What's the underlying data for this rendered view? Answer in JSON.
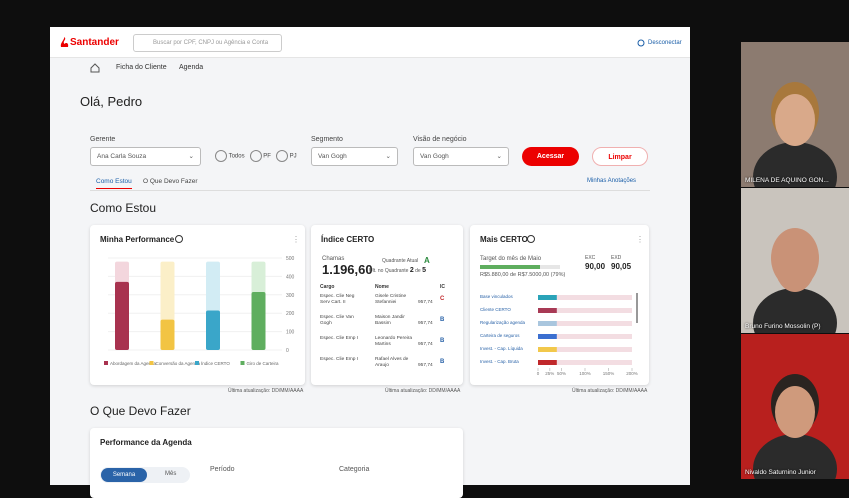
{
  "header": {
    "logo": "Santander",
    "search_placeholder": "Buscar por CPF, CNPJ ou Agência e Conta",
    "logout": "Desconectar"
  },
  "nav": [
    "Ficha do Cliente",
    "Agenda"
  ],
  "greeting": "Olá, Pedro",
  "filters": {
    "manager_label": "Gerente",
    "manager_value": "Ana Carla Souza",
    "radios": [
      "Todos",
      "PF",
      "PJ"
    ],
    "segment_label": "Segmento",
    "segment_value": "Van Gogh",
    "business_label": "Visão de negócio",
    "business_value": "Van Gogh",
    "submit": "Acessar",
    "clear": "Limpar"
  },
  "tabs": [
    "Como Estou",
    "O Que Devo Fazer"
  ],
  "notes_link": "Minhas Anotações",
  "section1_title": "Como Estou",
  "performance": {
    "title": "Minha Performance",
    "categories": [
      "Abordagem da Agenda",
      "Conversão da Agenda",
      "Índice CERTO",
      "Giro de Carteira"
    ],
    "colors": [
      "#a8324f",
      "#f2c443",
      "#3aa6c9",
      "#5fae5f"
    ],
    "track_colors": [
      "#f3d6dd",
      "#fbefc8",
      "#d2ecf4",
      "#d8efd8"
    ],
    "values": [
      370,
      165,
      215,
      315
    ],
    "track_values": [
      480,
      480,
      480,
      480
    ],
    "ylim": [
      0,
      500
    ],
    "yticks": [
      500,
      400,
      300,
      200,
      100,
      0
    ],
    "updated": "Última atualização: DD/MM/AAAA"
  },
  "indice": {
    "title": "Índice CERTO",
    "score_label": "Chamas",
    "score": "1.196,60",
    "quadrant_label": "Quadrante Atual",
    "quadrant": "A",
    "last_label": "Últ. no Quadrante",
    "last_value": "2",
    "last_of": "de",
    "last_total": "5",
    "columns": [
      "Cargo",
      "Nome",
      "IC"
    ],
    "rows": [
      [
        "Espec. Clie Neg Serv Cart. II",
        "Gisele Cristine Stefanniei",
        "957,74",
        "C"
      ],
      [
        "Espec. Clie Van Gogh",
        "Maison Jandir Bassim",
        "957,74",
        "B"
      ],
      [
        "Espec. Clie Emp I",
        "Leonardo Pereira Martins",
        "957,74",
        "B"
      ],
      [
        "Espec. Clie Emp I",
        "Rafael Alves de Araujo",
        "957,74",
        "B"
      ]
    ],
    "updated": "Última atualização: DD/MM/AAAA"
  },
  "mais": {
    "title": "Mais CERTO",
    "target_label": "Target do mês de Maio",
    "target_text": "R$5.880,00 de R$7.5000,00 (79%)",
    "exc_label": "EXC",
    "exc": "90,00",
    "exd_label": "EXD",
    "exd": "90,05",
    "categories": [
      "Base vinculados",
      "Cliente CERTO",
      "Regularização agenda",
      "Carteira de seguros",
      "Invest. - Cap. Líquida",
      "Invest. - Cap. Bruta"
    ],
    "colors": [
      "#2aa3b8",
      "#a83a55",
      "#a9c6de",
      "#3b6fd0",
      "#f2c84b",
      "#c0282b"
    ],
    "values": [
      40,
      40,
      40,
      40,
      40,
      40
    ],
    "xlim": [
      0,
      200
    ],
    "xticks": [
      {
        "value": 0,
        "label": "0"
      },
      {
        "value": 25,
        "label": "25%"
      },
      {
        "value": 50,
        "label": "50%"
      },
      {
        "value": 100,
        "label": "100%"
      },
      {
        "value": 150,
        "label": "150%"
      },
      {
        "value": 200,
        "label": "200%"
      }
    ],
    "updated": "Última atualização: DD/MM/AAAA"
  },
  "section2_title": "O Que Devo Fazer",
  "agenda": {
    "title": "Performance da Agenda",
    "tabs": [
      "Semana",
      "Mês"
    ],
    "period_label": "Período",
    "category_label": "Categoria"
  },
  "participants": [
    "MILENA DE AQUINO GON...",
    "Bruno Furino Mossolin (P)",
    "Nivaldo Saturnino Junior"
  ]
}
